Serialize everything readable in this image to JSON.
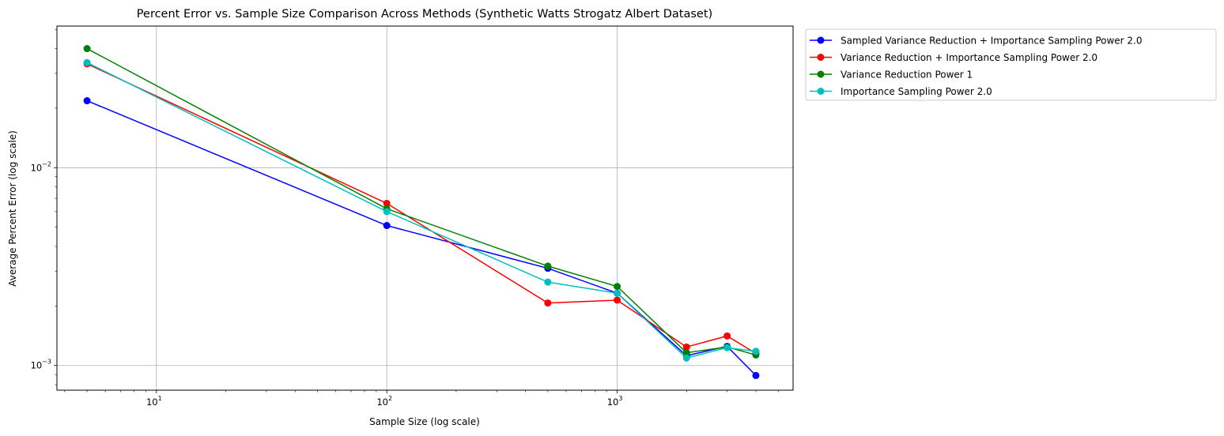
{
  "chart_data": {
    "type": "line",
    "title": "Percent Error vs. Sample Size Comparison Across Methods (Synthetic Watts Strogatz Albert Dataset)",
    "xlabel": "Sample Size (log scale)",
    "ylabel": "Average Percent Error (log scale)",
    "xscale": "log",
    "yscale": "log",
    "xlim": [
      3.7,
      5800
    ],
    "ylim": [
      0.00075,
      0.052
    ],
    "x_ticks": [
      {
        "value": 10,
        "base": "10",
        "exp": "1"
      },
      {
        "value": 100,
        "base": "10",
        "exp": "2"
      },
      {
        "value": 1000,
        "base": "10",
        "exp": "3"
      }
    ],
    "y_ticks": [
      {
        "value": 0.001,
        "base": "10",
        "exp": "−3"
      },
      {
        "value": 0.01,
        "base": "10",
        "exp": "−2"
      }
    ],
    "grid": true,
    "legend_position": "outside-top-right",
    "x": [
      5,
      100,
      500,
      1000,
      2000,
      3000,
      4000
    ],
    "series": [
      {
        "name": "Sampled Variance Reduction + Importance Sampling Power 2.0",
        "color": "#0000ff",
        "values": [
          0.0218,
          0.0051,
          0.0031,
          0.00232,
          0.00112,
          0.00125,
          0.00089
        ]
      },
      {
        "name": "Variance Reduction + Importance Sampling Power 2.0",
        "color": "#ff0000",
        "values": [
          0.0335,
          0.0066,
          0.00207,
          0.00214,
          0.00124,
          0.00141,
          0.00115
        ]
      },
      {
        "name": "Variance Reduction Power 1",
        "color": "#008000",
        "values": [
          0.04,
          0.0062,
          0.00318,
          0.00251,
          0.00116,
          0.00124,
          0.00113
        ]
      },
      {
        "name": "Importance Sampling Power 2.0",
        "color": "#00bfbf",
        "values": [
          0.034,
          0.006,
          0.00264,
          0.00232,
          0.00109,
          0.00123,
          0.00118
        ]
      }
    ]
  }
}
